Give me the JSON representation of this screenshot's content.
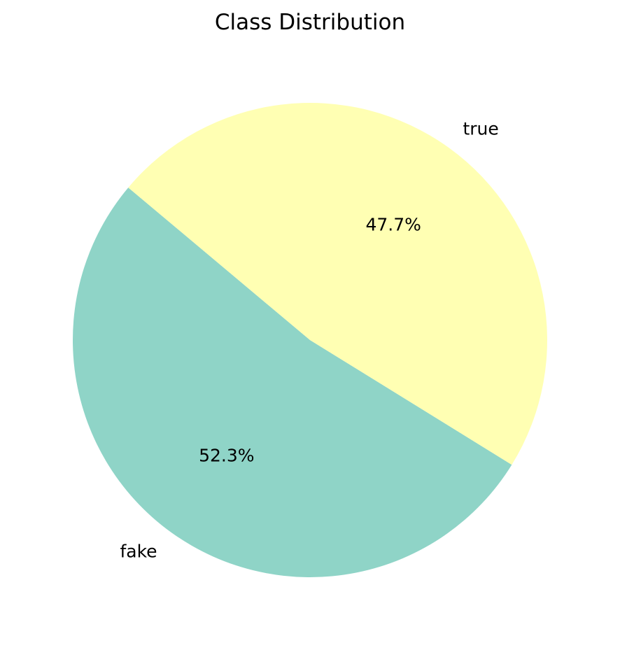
{
  "chart_data": {
    "type": "pie",
    "title": "Class Distribution",
    "slices": [
      {
        "label": "fake",
        "value": 52.3,
        "display": "52.3%",
        "color": "#8fd4c7"
      },
      {
        "label": "true",
        "value": 47.7,
        "display": "47.7%",
        "color": "#ffffb3"
      }
    ],
    "start_angle_deg": 140,
    "direction": "counterclockwise",
    "legend": "none"
  }
}
